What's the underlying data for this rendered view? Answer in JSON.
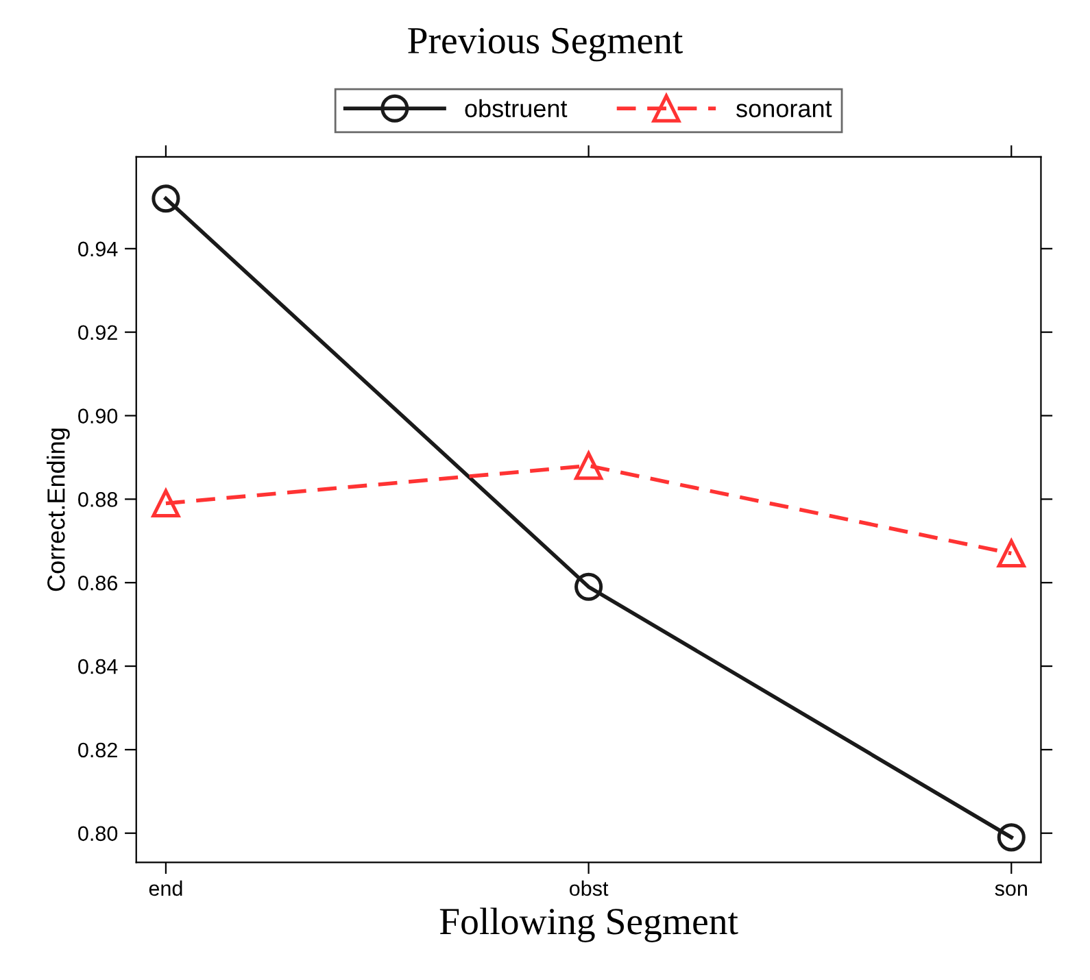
{
  "chart_data": {
    "type": "line",
    "legend_title": "Previous Segment",
    "xlabel": "Following Segment",
    "ylabel": "Correct.Ending",
    "categories": [
      "end",
      "obst",
      "son"
    ],
    "series": [
      {
        "name": "obstruent",
        "color": "#1a1a1a",
        "values": [
          0.952,
          0.859,
          0.799
        ],
        "marker": "circle",
        "line_style": "solid"
      },
      {
        "name": "sonorant",
        "color": "#ff3333",
        "values": [
          0.879,
          0.888,
          0.867
        ],
        "marker": "triangle",
        "line_style": "dashed"
      }
    ],
    "ylim": [
      0.793,
      0.962
    ],
    "yticks": [
      {
        "value": 0.8,
        "label": "0.80"
      },
      0.82,
      0.84,
      0.86,
      0.88,
      {
        "value": 0.9,
        "label": "0.90"
      },
      0.92,
      0.94
    ],
    "legend": "top",
    "grid": false
  }
}
